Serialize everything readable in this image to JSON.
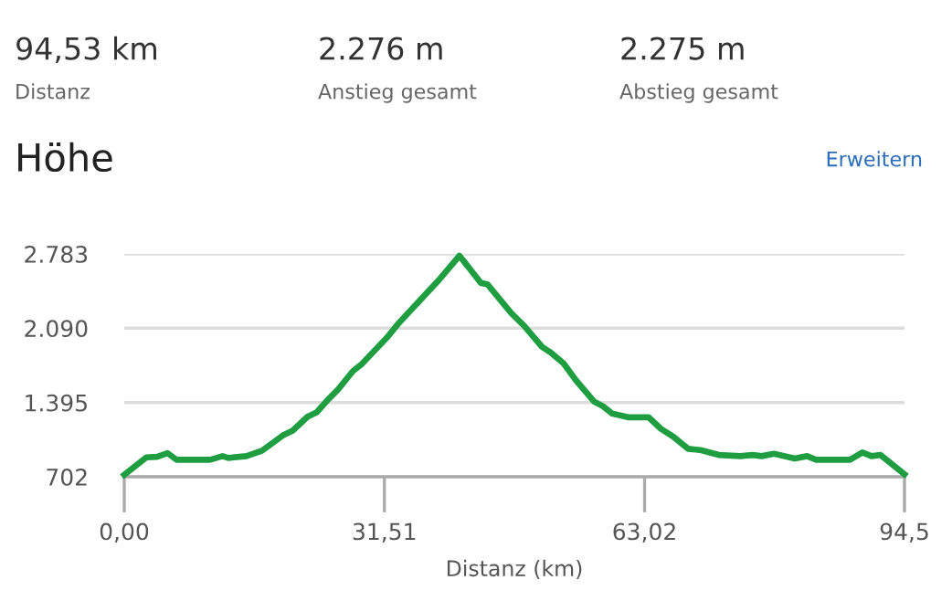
{
  "chart_data": {
    "type": "line",
    "title": "Höhe",
    "xlabel": "Distanz (km)",
    "annotations": [
      "94,53 km",
      "Distanz",
      "2.276 m",
      "Anstieg gesamt",
      "2.275 m",
      "Abstieg gesamt",
      "Erweitern"
    ],
    "x": [
      0,
      2.66,
      3.98,
      5.24,
      6.34,
      10.4,
      11.9,
      12.6,
      14.8,
      16.7,
      17.8,
      19.3,
      20.4,
      22.2,
      23.3,
      24.8,
      25.9,
      27.7,
      28.8,
      31.8,
      33.3,
      38.1,
      40.6,
      43.2,
      44.0,
      46.9,
      48.4,
      50.6,
      51.7,
      53.2,
      54.7,
      56.9,
      58.0,
      59.1,
      61.0,
      63.5,
      65.0,
      66.5,
      68.3,
      69.8,
      72.0,
      74.6,
      76.1,
      77.2,
      78.7,
      81.2,
      82.7,
      83.8,
      87.9,
      89.4,
      90.5,
      91.6,
      94.5
    ],
    "series": [
      {
        "color": "#1e9e40",
        "values": [
          720,
          883,
          889,
          923,
          861,
          861,
          895,
          878,
          895,
          946,
          1008,
          1093,
          1133,
          1263,
          1303,
          1433,
          1518,
          1689,
          1757,
          2000,
          2142,
          2539,
          2766,
          2511,
          2499,
          2227,
          2114,
          1915,
          1859,
          1762,
          1604,
          1405,
          1360,
          1292,
          1258,
          1258,
          1150,
          1076,
          963,
          951,
          906,
          895,
          906,
          895,
          917,
          872,
          895,
          861,
          861,
          929,
          895,
          906,
          725
        ]
      }
    ],
    "xlim": [
      0,
      94.5
    ],
    "xticks": [
      {
        "value": 0,
        "label": "0,00"
      },
      {
        "value": 31.51,
        "label": "31,51"
      },
      {
        "value": 63.02,
        "label": "63,02"
      },
      {
        "value": 94.5,
        "label": "94,5"
      }
    ],
    "ylim": [
      702,
      2783
    ],
    "yticks": [
      {
        "value": 702,
        "label": "702"
      },
      {
        "value": 1395,
        "label": "1.395"
      },
      {
        "value": 2090,
        "label": "2.090"
      },
      {
        "value": 2783,
        "label": "2.783"
      }
    ],
    "grid": "y",
    "marker": "none",
    "line_style": "solid"
  }
}
